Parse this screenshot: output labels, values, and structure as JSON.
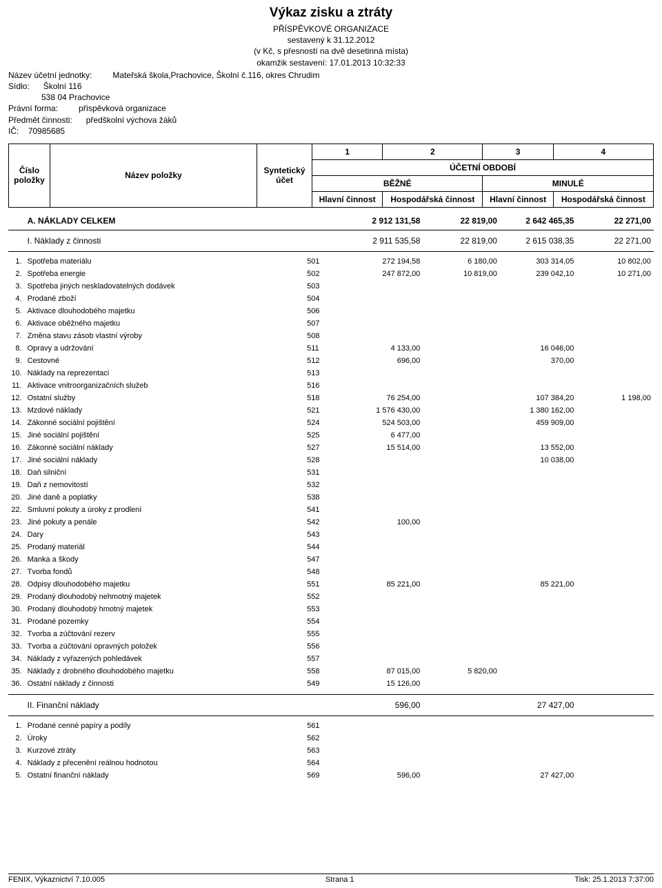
{
  "title": "Výkaz zisku a ztráty",
  "subtitle1": "PŘÍSPĚVKOVÉ ORGANIZACE",
  "subtitle2": "sestavený k 31.12.2012",
  "subtitle3": "(v Kč, s přesností na dvě desetinná místa)",
  "subtitle4": "okamžik sestavení: 17.01.2013 10:32:33",
  "meta": {
    "unit_label": "Název účetní jednotky:",
    "unit_value": "Mateřská škola,Prachovice, Školní č.116, okres Chrudim",
    "seat_label": "Sídlo:",
    "seat_line1": "Školní 116",
    "seat_line2": "538 04 Prachovice",
    "form_label": "Právní forma:",
    "form_value": "příspěvková organizace",
    "activity_label": "Předmět činnosti:",
    "activity_value": "předškolní výchova žáků",
    "ic_label": "IČ:",
    "ic_value": "70985685"
  },
  "header": {
    "c1": "1",
    "c2": "2",
    "c3": "3",
    "c4": "4",
    "period": "ÚČETNÍ OBDOBÍ",
    "item_num": "Číslo položky",
    "item_name": "Název položky",
    "acct": "Syntetický účet",
    "current": "BĚŽNÉ",
    "previous": "MINULÉ",
    "main_act": "Hlavní činnost",
    "econ_act": "Hospodářská činnost"
  },
  "sections": {
    "A": {
      "label": "A.  NÁKLADY CELKEM",
      "v1": "2 912 131,58",
      "v2": "22 819,00",
      "v3": "2 642 465,35",
      "v4": "22 271,00"
    },
    "I": {
      "label": "I.  Náklady z činnosti",
      "v1": "2 911 535,58",
      "v2": "22 819,00",
      "v3": "2 615 038,35",
      "v4": "22 271,00"
    },
    "II": {
      "label": "II.  Finanční náklady",
      "v1": "596,00",
      "v2": "",
      "v3": "27 427,00",
      "v4": ""
    }
  },
  "rows_i": [
    {
      "n": "1.",
      "label": "Spotřeba materiálu",
      "acct": "501",
      "v1": "272 194,58",
      "v2": "6 180,00",
      "v3": "303 314,05",
      "v4": "10 802,00"
    },
    {
      "n": "2.",
      "label": "Spotřeba energie",
      "acct": "502",
      "v1": "247 872,00",
      "v2": "10 819,00",
      "v3": "239 042,10",
      "v4": "10 271,00"
    },
    {
      "n": "3.",
      "label": "Spotřeba jiných neskladovatelných dodávek",
      "acct": "503",
      "v1": "",
      "v2": "",
      "v3": "",
      "v4": ""
    },
    {
      "n": "4.",
      "label": "Prodané zboží",
      "acct": "504",
      "v1": "",
      "v2": "",
      "v3": "",
      "v4": ""
    },
    {
      "n": "5.",
      "label": "Aktivace dlouhodobého majetku",
      "acct": "506",
      "v1": "",
      "v2": "",
      "v3": "",
      "v4": ""
    },
    {
      "n": "6.",
      "label": "Aktivace oběžného majetku",
      "acct": "507",
      "v1": "",
      "v2": "",
      "v3": "",
      "v4": ""
    },
    {
      "n": "7.",
      "label": "Změna stavu zásob vlastní výroby",
      "acct": "508",
      "v1": "",
      "v2": "",
      "v3": "",
      "v4": ""
    },
    {
      "n": "8.",
      "label": "Opravy a udržování",
      "acct": "511",
      "v1": "4 133,00",
      "v2": "",
      "v3": "16 046,00",
      "v4": ""
    },
    {
      "n": "9.",
      "label": "Cestovné",
      "acct": "512",
      "v1": "696,00",
      "v2": "",
      "v3": "370,00",
      "v4": ""
    },
    {
      "n": "10.",
      "label": "Náklady na reprezentaci",
      "acct": "513",
      "v1": "",
      "v2": "",
      "v3": "",
      "v4": ""
    },
    {
      "n": "11.",
      "label": "Aktivace vnitroorganizačních služeb",
      "acct": "516",
      "v1": "",
      "v2": "",
      "v3": "",
      "v4": ""
    },
    {
      "n": "12.",
      "label": "Ostatní služby",
      "acct": "518",
      "v1": "76 254,00",
      "v2": "",
      "v3": "107 384,20",
      "v4": "1 198,00"
    },
    {
      "n": "13.",
      "label": "Mzdové náklady",
      "acct": "521",
      "v1": "1 576 430,00",
      "v2": "",
      "v3": "1 380 162,00",
      "v4": ""
    },
    {
      "n": "14.",
      "label": "Zákonné sociální pojištění",
      "acct": "524",
      "v1": "524 503,00",
      "v2": "",
      "v3": "459 909,00",
      "v4": ""
    },
    {
      "n": "15.",
      "label": "Jiné sociální pojištění",
      "acct": "525",
      "v1": "6 477,00",
      "v2": "",
      "v3": "",
      "v4": ""
    },
    {
      "n": "16.",
      "label": "Zákonné sociální náklady",
      "acct": "527",
      "v1": "15 514,00",
      "v2": "",
      "v3": "13 552,00",
      "v4": ""
    },
    {
      "n": "17.",
      "label": "Jiné sociální náklady",
      "acct": "528",
      "v1": "",
      "v2": "",
      "v3": "10 038,00",
      "v4": ""
    },
    {
      "n": "18.",
      "label": "Daň silniční",
      "acct": "531",
      "v1": "",
      "v2": "",
      "v3": "",
      "v4": ""
    },
    {
      "n": "19.",
      "label": "Daň z nemovitostí",
      "acct": "532",
      "v1": "",
      "v2": "",
      "v3": "",
      "v4": ""
    },
    {
      "n": "20.",
      "label": "Jiné daně a poplatky",
      "acct": "538",
      "v1": "",
      "v2": "",
      "v3": "",
      "v4": ""
    },
    {
      "n": "22.",
      "label": "Smluvní pokuty a úroky z prodlení",
      "acct": "541",
      "v1": "",
      "v2": "",
      "v3": "",
      "v4": ""
    },
    {
      "n": "23.",
      "label": "Jiné pokuty a penále",
      "acct": "542",
      "v1": "100,00",
      "v2": "",
      "v3": "",
      "v4": ""
    },
    {
      "n": "24.",
      "label": "Dary",
      "acct": "543",
      "v1": "",
      "v2": "",
      "v3": "",
      "v4": ""
    },
    {
      "n": "25.",
      "label": "Prodaný materiál",
      "acct": "544",
      "v1": "",
      "v2": "",
      "v3": "",
      "v4": ""
    },
    {
      "n": "26.",
      "label": "Manka a škody",
      "acct": "547",
      "v1": "",
      "v2": "",
      "v3": "",
      "v4": ""
    },
    {
      "n": "27.",
      "label": "Tvorba fondů",
      "acct": "548",
      "v1": "",
      "v2": "",
      "v3": "",
      "v4": ""
    },
    {
      "n": "28.",
      "label": "Odpisy dlouhodobého majetku",
      "acct": "551",
      "v1": "85 221,00",
      "v2": "",
      "v3": "85 221,00",
      "v4": ""
    },
    {
      "n": "29.",
      "label": "Prodaný dlouhodobý nehmotný majetek",
      "acct": "552",
      "v1": "",
      "v2": "",
      "v3": "",
      "v4": ""
    },
    {
      "n": "30.",
      "label": "Prodaný dlouhodobý hmotný majetek",
      "acct": "553",
      "v1": "",
      "v2": "",
      "v3": "",
      "v4": ""
    },
    {
      "n": "31.",
      "label": "Prodané pozemky",
      "acct": "554",
      "v1": "",
      "v2": "",
      "v3": "",
      "v4": ""
    },
    {
      "n": "32.",
      "label": "Tvorba a zúčtování rezerv",
      "acct": "555",
      "v1": "",
      "v2": "",
      "v3": "",
      "v4": ""
    },
    {
      "n": "33.",
      "label": "Tvorba a zúčtování opravných položek",
      "acct": "556",
      "v1": "",
      "v2": "",
      "v3": "",
      "v4": ""
    },
    {
      "n": "34.",
      "label": "Náklady z vyřazených pohledávek",
      "acct": "557",
      "v1": "",
      "v2": "",
      "v3": "",
      "v4": ""
    },
    {
      "n": "35.",
      "label": "Náklady z drobného dlouhodobého majetku",
      "acct": "558",
      "v1": "87 015,00",
      "v2": "5 820,00",
      "v3": "",
      "v4": ""
    },
    {
      "n": "36.",
      "label": "Ostatní náklady z činnosti",
      "acct": "549",
      "v1": "15 126,00",
      "v2": "",
      "v3": "",
      "v4": ""
    }
  ],
  "rows_ii": [
    {
      "n": "1.",
      "label": "Prodané cenné papíry a podíly",
      "acct": "561",
      "v1": "",
      "v2": "",
      "v3": "",
      "v4": ""
    },
    {
      "n": "2.",
      "label": "Úroky",
      "acct": "562",
      "v1": "",
      "v2": "",
      "v3": "",
      "v4": ""
    },
    {
      "n": "3.",
      "label": "Kurzové ztráty",
      "acct": "563",
      "v1": "",
      "v2": "",
      "v3": "",
      "v4": ""
    },
    {
      "n": "4.",
      "label": "Náklady z přecenění reálnou hodnotou",
      "acct": "564",
      "v1": "",
      "v2": "",
      "v3": "",
      "v4": ""
    },
    {
      "n": "5.",
      "label": "Ostatní finanční náklady",
      "acct": "569",
      "v1": "596,00",
      "v2": "",
      "v3": "27 427,00",
      "v4": ""
    }
  ],
  "footer": {
    "left": "FENIX, Výkaznictví 7.10.005",
    "center": "Strana 1",
    "right": "Tisk: 25.1.2013 7:37:00"
  }
}
